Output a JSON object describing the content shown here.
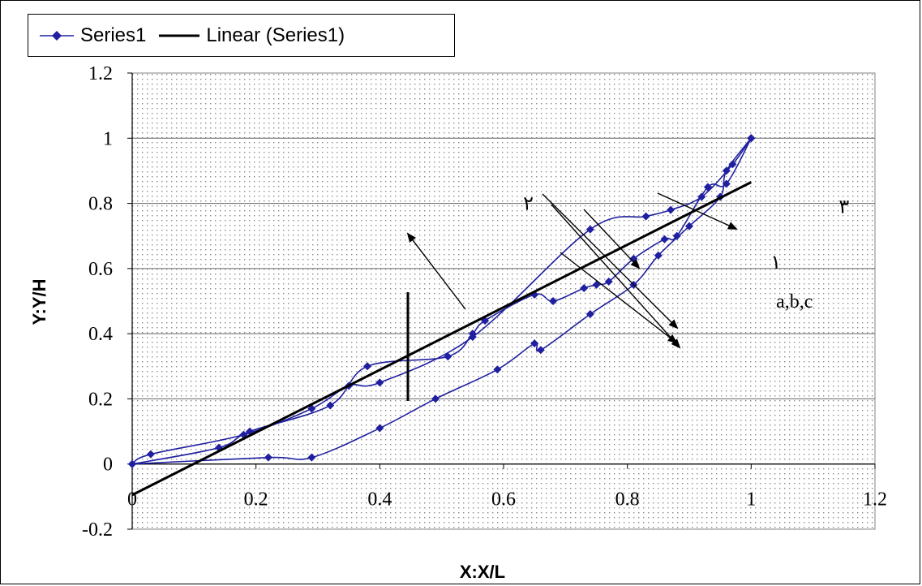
{
  "chart_data": {
    "type": "line",
    "xlabel": "X:X/L",
    "ylabel": "Y:Y/H",
    "xlim": [
      0,
      1.2
    ],
    "ylim": [
      -0.2,
      1.2
    ],
    "x_ticks": [
      "0",
      "0.2",
      "0.4",
      "0.6",
      "0.8",
      "1",
      "1.2"
    ],
    "y_ticks": [
      "1.2",
      "1",
      "0.8",
      "0.6",
      "0.4",
      "0.2",
      "0",
      "-0.2"
    ],
    "grid": true,
    "legend_position": "top-left",
    "legend": [
      {
        "label": "Series1",
        "style": "line-diamond",
        "color": "#1f1fa0"
      },
      {
        "label": "Linear (Series1)",
        "style": "line",
        "color": "#000000"
      }
    ],
    "series": [
      {
        "name": "Series1",
        "curve": "a",
        "x": [
          0,
          0.03,
          0.18,
          0.29,
          0.35,
          0.4,
          0.55,
          0.74,
          0.83,
          0.87,
          0.92,
          0.97,
          1.0
        ],
        "y": [
          0,
          0.03,
          0.09,
          0.17,
          0.24,
          0.25,
          0.39,
          0.72,
          0.76,
          0.78,
          0.82,
          0.92,
          1.0
        ]
      },
      {
        "name": "Series1",
        "curve": "b",
        "x": [
          0,
          0.14,
          0.19,
          0.32,
          0.38,
          0.51,
          0.55,
          0.57,
          0.65,
          0.68,
          0.73,
          0.75,
          0.77,
          0.81,
          0.86,
          0.88,
          0.93,
          0.96,
          1.0
        ],
        "y": [
          0,
          0.05,
          0.1,
          0.18,
          0.3,
          0.33,
          0.4,
          0.44,
          0.52,
          0.5,
          0.54,
          0.55,
          0.56,
          0.63,
          0.69,
          0.7,
          0.85,
          0.86,
          1.0
        ]
      },
      {
        "name": "Series1",
        "curve": "c",
        "x": [
          0,
          0.22,
          0.29,
          0.4,
          0.49,
          0.59,
          0.65,
          0.66,
          0.74,
          0.81,
          0.85,
          0.9,
          0.95,
          0.96,
          1.0
        ],
        "y": [
          0,
          0.02,
          0.02,
          0.11,
          0.2,
          0.29,
          0.37,
          0.35,
          0.46,
          0.55,
          0.64,
          0.73,
          0.82,
          0.9,
          1.0
        ]
      },
      {
        "name": "Linear (Series1)",
        "type": "trendline",
        "x": [
          0,
          1.0
        ],
        "y": [
          -0.095,
          0.865
        ]
      }
    ],
    "annotations": [
      {
        "text": "a,b,c",
        "x": 1.07,
        "y": 0.5
      },
      {
        "text": "١",
        "x": 1.04,
        "y": 0.62
      },
      {
        "text": "٢",
        "x": 0.64,
        "y": 0.8
      },
      {
        "text": "٣",
        "x": 1.15,
        "y": 0.79
      }
    ]
  }
}
